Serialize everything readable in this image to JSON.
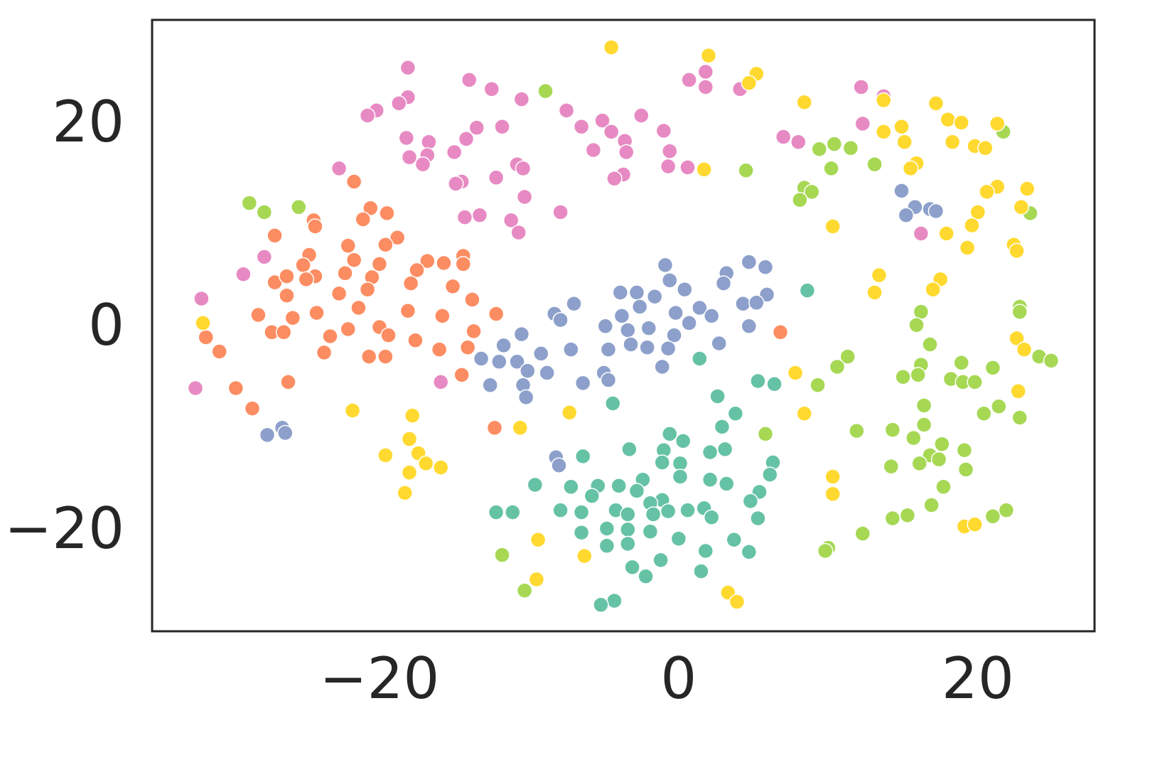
{
  "chart_data": {
    "type": "scatter",
    "xlim": [
      -35.2,
      27.8
    ],
    "ylim": [
      -29.7,
      30.4
    ],
    "xticks": [
      {
        "value": -20,
        "label": "−20"
      },
      0,
      20
    ],
    "yticks": [
      {
        "value": -20,
        "label": "−20"
      },
      0,
      20
    ],
    "grid": false,
    "series": [
      {
        "color": "#66c2a5",
        "x": [
          8.6,
          1.4,
          5.3,
          6.4,
          2.6,
          -4.4,
          3.8,
          2.9,
          -0.6,
          5.8,
          0.3,
          -3.3,
          -1.0,
          2.1,
          3.1,
          -6.4,
          -1.1,
          0.1,
          6.3,
          6.1,
          -2.4,
          0.1,
          2.1,
          3.2,
          -9.6,
          -7.2,
          -5.4,
          -4.0,
          -2.8,
          -5.8,
          5.4,
          -1.1,
          -1.9,
          4.8,
          -12.2,
          -11.1,
          -7.9,
          -6.5,
          -4.2,
          -3.4,
          -1.7,
          -0.7,
          0.6,
          1.7,
          2.2,
          5.3,
          -6.5,
          -4.8,
          -3.4,
          -1.9,
          0.0,
          3.7,
          -4.8,
          -3.4,
          1.8,
          4.7,
          -1.2,
          -3.1,
          -2.2,
          1.5,
          -4.3,
          -5.2
        ],
        "values": [
          3.8,
          -2.9,
          -5.1,
          -5.4,
          -6.6,
          -7.3,
          -8.3,
          -9.6,
          -10.3,
          -10.3,
          -11.0,
          -11.8,
          -11.9,
          -12.1,
          -11.8,
          -12.5,
          -13.1,
          -13.2,
          -13.1,
          -14.3,
          -14.8,
          -14.5,
          -14.8,
          -15.2,
          -15.3,
          -15.5,
          -15.4,
          -15.4,
          -15.9,
          -16.4,
          -16.0,
          -16.8,
          -17.1,
          -16.9,
          -18.0,
          -18.0,
          -17.8,
          -18.0,
          -17.8,
          -18.2,
          -18.2,
          -17.9,
          -17.8,
          -17.6,
          -18.5,
          -18.6,
          -20.0,
          -19.6,
          -19.7,
          -19.9,
          -20.6,
          -20.7,
          -21.3,
          -21.1,
          -21.8,
          -21.9,
          -22.7,
          -23.4,
          -24.3,
          -23.8,
          -26.7,
          -27.1
        ]
      },
      {
        "color": "#fc8d62",
        "x": [
          -21.7,
          -20.6,
          -19.5,
          -21.1,
          -24.4,
          -24.3,
          -27.0,
          -18.8,
          -19.6,
          -22.1,
          -24.7,
          -21.7,
          -25.1,
          -20.0,
          -16.8,
          -15.7,
          -14.4,
          -14.4,
          -27.0,
          -26.2,
          -24.3,
          -24.9,
          -22.3,
          -20.5,
          -17.5,
          -17.9,
          -15.1,
          -13.8,
          -22.7,
          -26.2,
          -20.8,
          -21.4,
          -24.2,
          -28.1,
          -25.8,
          -18.1,
          -15.8,
          -12.2,
          -27.2,
          -26.4,
          -23.3,
          -22.1,
          -20.0,
          -19.4,
          -13.7,
          -31.6,
          -30.7,
          -23.7,
          -20.7,
          -19.6,
          -17.6,
          -16.0,
          -14.1,
          -14.5,
          -26.1,
          -29.6,
          -28.5,
          -12.3,
          6.8
        ],
        "values": [
          14.5,
          11.9,
          11.4,
          10.8,
          10.7,
          10.1,
          9.2,
          9.0,
          8.3,
          8.2,
          7.3,
          6.8,
          6.3,
          6.4,
          6.7,
          6.5,
          7.2,
          6.4,
          4.6,
          5.2,
          5.2,
          4.9,
          5.5,
          5.1,
          5.8,
          4.5,
          4.2,
          2.9,
          3.5,
          3.3,
          3.9,
          2.1,
          1.6,
          1.4,
          1.1,
          1.8,
          1.3,
          1.5,
          -0.3,
          -0.3,
          -0.7,
          0.0,
          0.2,
          -0.6,
          -0.2,
          -0.8,
          -2.2,
          -2.3,
          -2.7,
          -2.7,
          -1.1,
          -2.0,
          -1.8,
          -4.5,
          -5.2,
          -5.8,
          -7.8,
          -9.7,
          -0.3
        ]
      },
      {
        "color": "#8da0cb",
        "x": [
          -0.9,
          4.7,
          5.8,
          3.2,
          3.0,
          -0.6,
          0.4,
          -3.9,
          -2.8,
          -1.6,
          5.9,
          -7.0,
          -2.6,
          4.3,
          5.2,
          -8.3,
          -3.8,
          -0.2,
          1.4,
          2.2,
          -7.9,
          -4.9,
          -3.4,
          -2.0,
          0.7,
          4.7,
          -10.5,
          -0.3,
          -3.2,
          -2.1,
          -0.7,
          2.7,
          -11.7,
          -7.2,
          -4.7,
          -9.2,
          -13.2,
          -12.0,
          -10.8,
          -10.1,
          -8.8,
          -5.0,
          -4.7,
          -6.4,
          -12.6,
          -10.4,
          -10.2,
          -1.1,
          14.9,
          15.8,
          15.2,
          16.8,
          17.2,
          -8.2,
          -8.0,
          -27.5,
          -26.5,
          -26.3
        ],
        "values": [
          6.3,
          6.6,
          6.1,
          5.5,
          4.5,
          4.8,
          3.9,
          3.6,
          3.6,
          3.2,
          3.4,
          2.5,
          2.2,
          2.5,
          2.6,
          1.5,
          1.3,
          1.6,
          2.1,
          1.3,
          0.9,
          0.3,
          -0.1,
          0.1,
          0.6,
          0.3,
          -0.5,
          -0.6,
          -1.5,
          -1.8,
          -1.9,
          -1.4,
          -1.6,
          -2.0,
          -2.0,
          -2.4,
          -2.9,
          -3.2,
          -3.2,
          -4.1,
          -4.3,
          -4.3,
          -5.0,
          -5.3,
          -5.5,
          -5.5,
          -6.7,
          -3.7,
          13.6,
          12.0,
          11.2,
          11.8,
          11.6,
          -12.6,
          -13.4,
          -10.4,
          -9.7,
          -10.2
        ]
      },
      {
        "color": "#e78ac3",
        "x": [
          -18.1,
          -14.0,
          -12.5,
          -18.1,
          -18.7,
          -20.2,
          -20.8,
          -10.5,
          -7.5,
          -11.8,
          -13.5,
          -6.5,
          -5.1,
          -4.5,
          -3.6,
          -2.5,
          -1.0,
          -0.6,
          -3.5,
          -5.7,
          -0.7,
          0.6,
          -3.7,
          -4.3,
          0.7,
          1.8,
          1.8,
          4.1,
          13.7,
          12.2,
          12.3,
          7.0,
          8.0,
          -18.2,
          -16.7,
          -16.8,
          -18.0,
          -17.1,
          -15.0,
          -14.2,
          -22.7,
          -14.5,
          -14.9,
          -12.2,
          -10.8,
          -10.4,
          -10.3,
          -14.3,
          -13.3,
          -11.2,
          -10.7,
          -7.9,
          16.2,
          -27.7,
          -29.1,
          -31.9,
          -32.3,
          -15.9
        ],
        "values": [
          25.7,
          24.5,
          23.6,
          22.8,
          22.2,
          21.5,
          21.0,
          22.6,
          21.5,
          19.9,
          19.8,
          19.9,
          20.5,
          19.4,
          18.5,
          21.0,
          19.5,
          17.5,
          17.4,
          17.6,
          16.0,
          15.9,
          15.2,
          14.8,
          24.5,
          25.3,
          23.8,
          23.6,
          22.9,
          23.8,
          20.2,
          18.9,
          18.4,
          18.8,
          18.4,
          17.1,
          16.9,
          16.2,
          17.4,
          18.7,
          15.8,
          14.5,
          14.3,
          14.9,
          16.2,
          15.8,
          13.0,
          11.0,
          11.2,
          10.7,
          9.5,
          11.5,
          9.4,
          7.1,
          5.4,
          3.0,
          -5.8,
          -5.2
        ]
      },
      {
        "color": "#a6d854",
        "x": [
          -8.9,
          -28.7,
          -27.7,
          -25.4,
          4.5,
          9.4,
          10.4,
          11.5,
          13.1,
          10.2,
          21.7,
          8.4,
          8.9,
          8.1,
          23.5,
          16.2,
          22.8,
          15.9,
          22.8,
          16.8,
          11.3,
          10.6,
          9.3,
          16.2,
          15.0,
          16.0,
          18.9,
          18.2,
          19.0,
          19.8,
          21.0,
          24.1,
          24.9,
          16.4,
          20.4,
          21.4,
          22.8,
          5.8,
          11.9,
          14.3,
          15.7,
          16.4,
          17.6,
          19.1,
          16.8,
          17.4,
          14.2,
          16.1,
          19.2,
          17.7,
          16.9,
          15.3,
          14.3,
          21.0,
          21.9,
          12.3,
          10.0,
          9.8,
          -11.8,
          -10.3
        ],
        "values": [
          23.4,
          12.4,
          11.5,
          12.0,
          15.6,
          17.7,
          18.2,
          17.8,
          16.2,
          15.8,
          19.4,
          13.9,
          13.5,
          12.7,
          11.4,
          1.7,
          2.2,
          0.4,
          1.7,
          -1.5,
          -2.7,
          -3.7,
          -5.5,
          -3.5,
          -4.7,
          -4.5,
          -3.3,
          -4.9,
          -5.2,
          -5.2,
          -3.8,
          -2.7,
          -3.1,
          -7.5,
          -8.3,
          -7.6,
          -8.7,
          -10.3,
          -10.0,
          -9.9,
          -10.7,
          -9.4,
          -11.3,
          -11.9,
          -12.4,
          -12.8,
          -13.5,
          -13.2,
          -13.8,
          -15.5,
          -17.3,
          -18.3,
          -18.6,
          -18.4,
          -17.8,
          -20.1,
          -21.5,
          -21.8,
          -22.2,
          -25.7
        ]
      },
      {
        "color": "#ffd92f",
        "x": [
          -4.5,
          2.0,
          5.2,
          4.7,
          8.4,
          13.7,
          17.2,
          18.0,
          18.9,
          13.7,
          14.9,
          21.3,
          15.1,
          18.3,
          19.8,
          20.5,
          15.9,
          15.5,
          1.7,
          23.3,
          21.3,
          20.6,
          20.0,
          22.9,
          10.3,
          19.6,
          17.9,
          19.3,
          22.4,
          22.6,
          13.4,
          17.5,
          17.0,
          13.1,
          -31.8,
          22.6,
          23.1,
          7.8,
          22.7,
          8.4,
          -21.8,
          -17.8,
          -7.3,
          -10.6,
          -18.0,
          -17.4,
          -19.6,
          -16.9,
          -15.9,
          -18.0,
          -18.3,
          10.3,
          10.3,
          -9.4,
          -6.3,
          19.1,
          19.8,
          -9.5,
          3.3,
          3.9
        ],
        "values": [
          27.7,
          26.9,
          25.1,
          24.2,
          22.3,
          22.5,
          22.2,
          20.6,
          20.3,
          19.4,
          19.9,
          20.2,
          18.4,
          18.4,
          18.0,
          17.8,
          16.3,
          15.8,
          15.7,
          13.8,
          14.0,
          13.5,
          11.5,
          12.0,
          10.1,
          10.2,
          9.4,
          8.0,
          8.3,
          7.7,
          5.3,
          4.9,
          3.9,
          3.6,
          0.6,
          -0.9,
          -2.0,
          -4.3,
          -6.1,
          -8.3,
          -8.0,
          -8.5,
          -8.2,
          -9.7,
          -10.8,
          -12.2,
          -12.4,
          -13.2,
          -13.6,
          -14.1,
          -16.1,
          -14.5,
          -16.2,
          -20.7,
          -22.3,
          -19.4,
          -19.2,
          -24.6,
          -25.9,
          -26.8
        ]
      }
    ]
  }
}
